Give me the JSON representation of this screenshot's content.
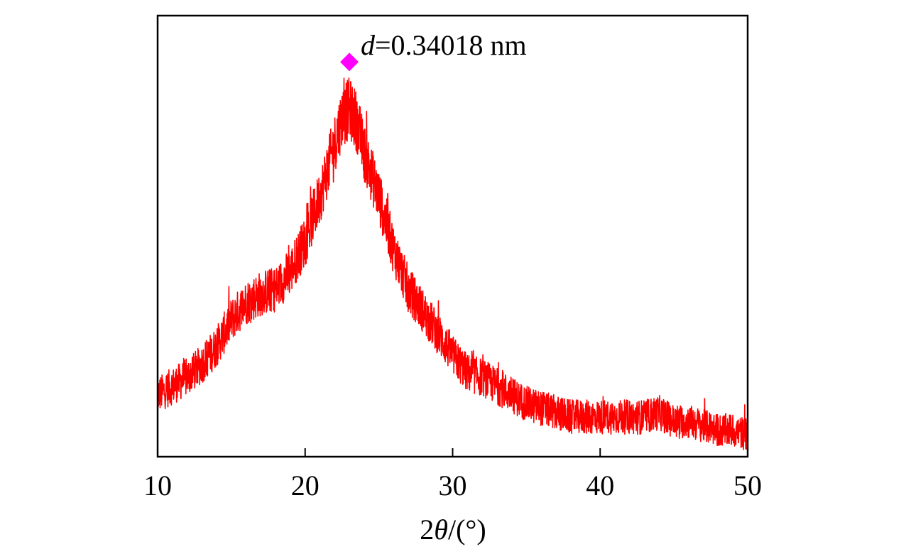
{
  "chart_data": {
    "type": "line",
    "xlabel_parts": [
      "2",
      "θ",
      "/(°)"
    ],
    "ylabel": "",
    "xlim": [
      10,
      50
    ],
    "ylim": [
      0,
      1
    ],
    "y_ticks_shown": false,
    "grid": false,
    "xticks": [
      "10",
      "20",
      "30",
      "40",
      "50"
    ],
    "xtick_values": [
      10,
      20,
      30,
      40,
      50
    ],
    "series": [
      {
        "color": "#ff0000",
        "envelope_x": [
          10,
          11,
          12,
          13,
          14,
          15,
          16,
          17,
          18,
          19,
          20,
          21,
          22,
          22.5,
          23,
          23.5,
          24,
          25,
          26,
          27,
          28,
          29,
          30,
          31,
          32,
          33,
          34,
          35,
          36,
          37,
          38,
          39,
          40,
          41,
          42,
          43,
          44,
          45,
          46,
          47,
          48,
          49,
          50
        ],
        "envelope_y": [
          0.14,
          0.16,
          0.18,
          0.21,
          0.25,
          0.31,
          0.35,
          0.37,
          0.38,
          0.42,
          0.49,
          0.59,
          0.71,
          0.77,
          0.79,
          0.76,
          0.69,
          0.59,
          0.47,
          0.38,
          0.33,
          0.28,
          0.23,
          0.19,
          0.18,
          0.16,
          0.14,
          0.12,
          0.11,
          0.1,
          0.09,
          0.09,
          0.09,
          0.09,
          0.09,
          0.09,
          0.1,
          0.08,
          0.08,
          0.07,
          0.06,
          0.06,
          0.05
        ]
      }
    ],
    "peak_marker": {
      "x": 23,
      "y": 0.895,
      "symbol": "diamond",
      "color": "#ff00ff"
    },
    "annotation": {
      "italic": "d",
      "text": "=0.34018 nm"
    }
  }
}
